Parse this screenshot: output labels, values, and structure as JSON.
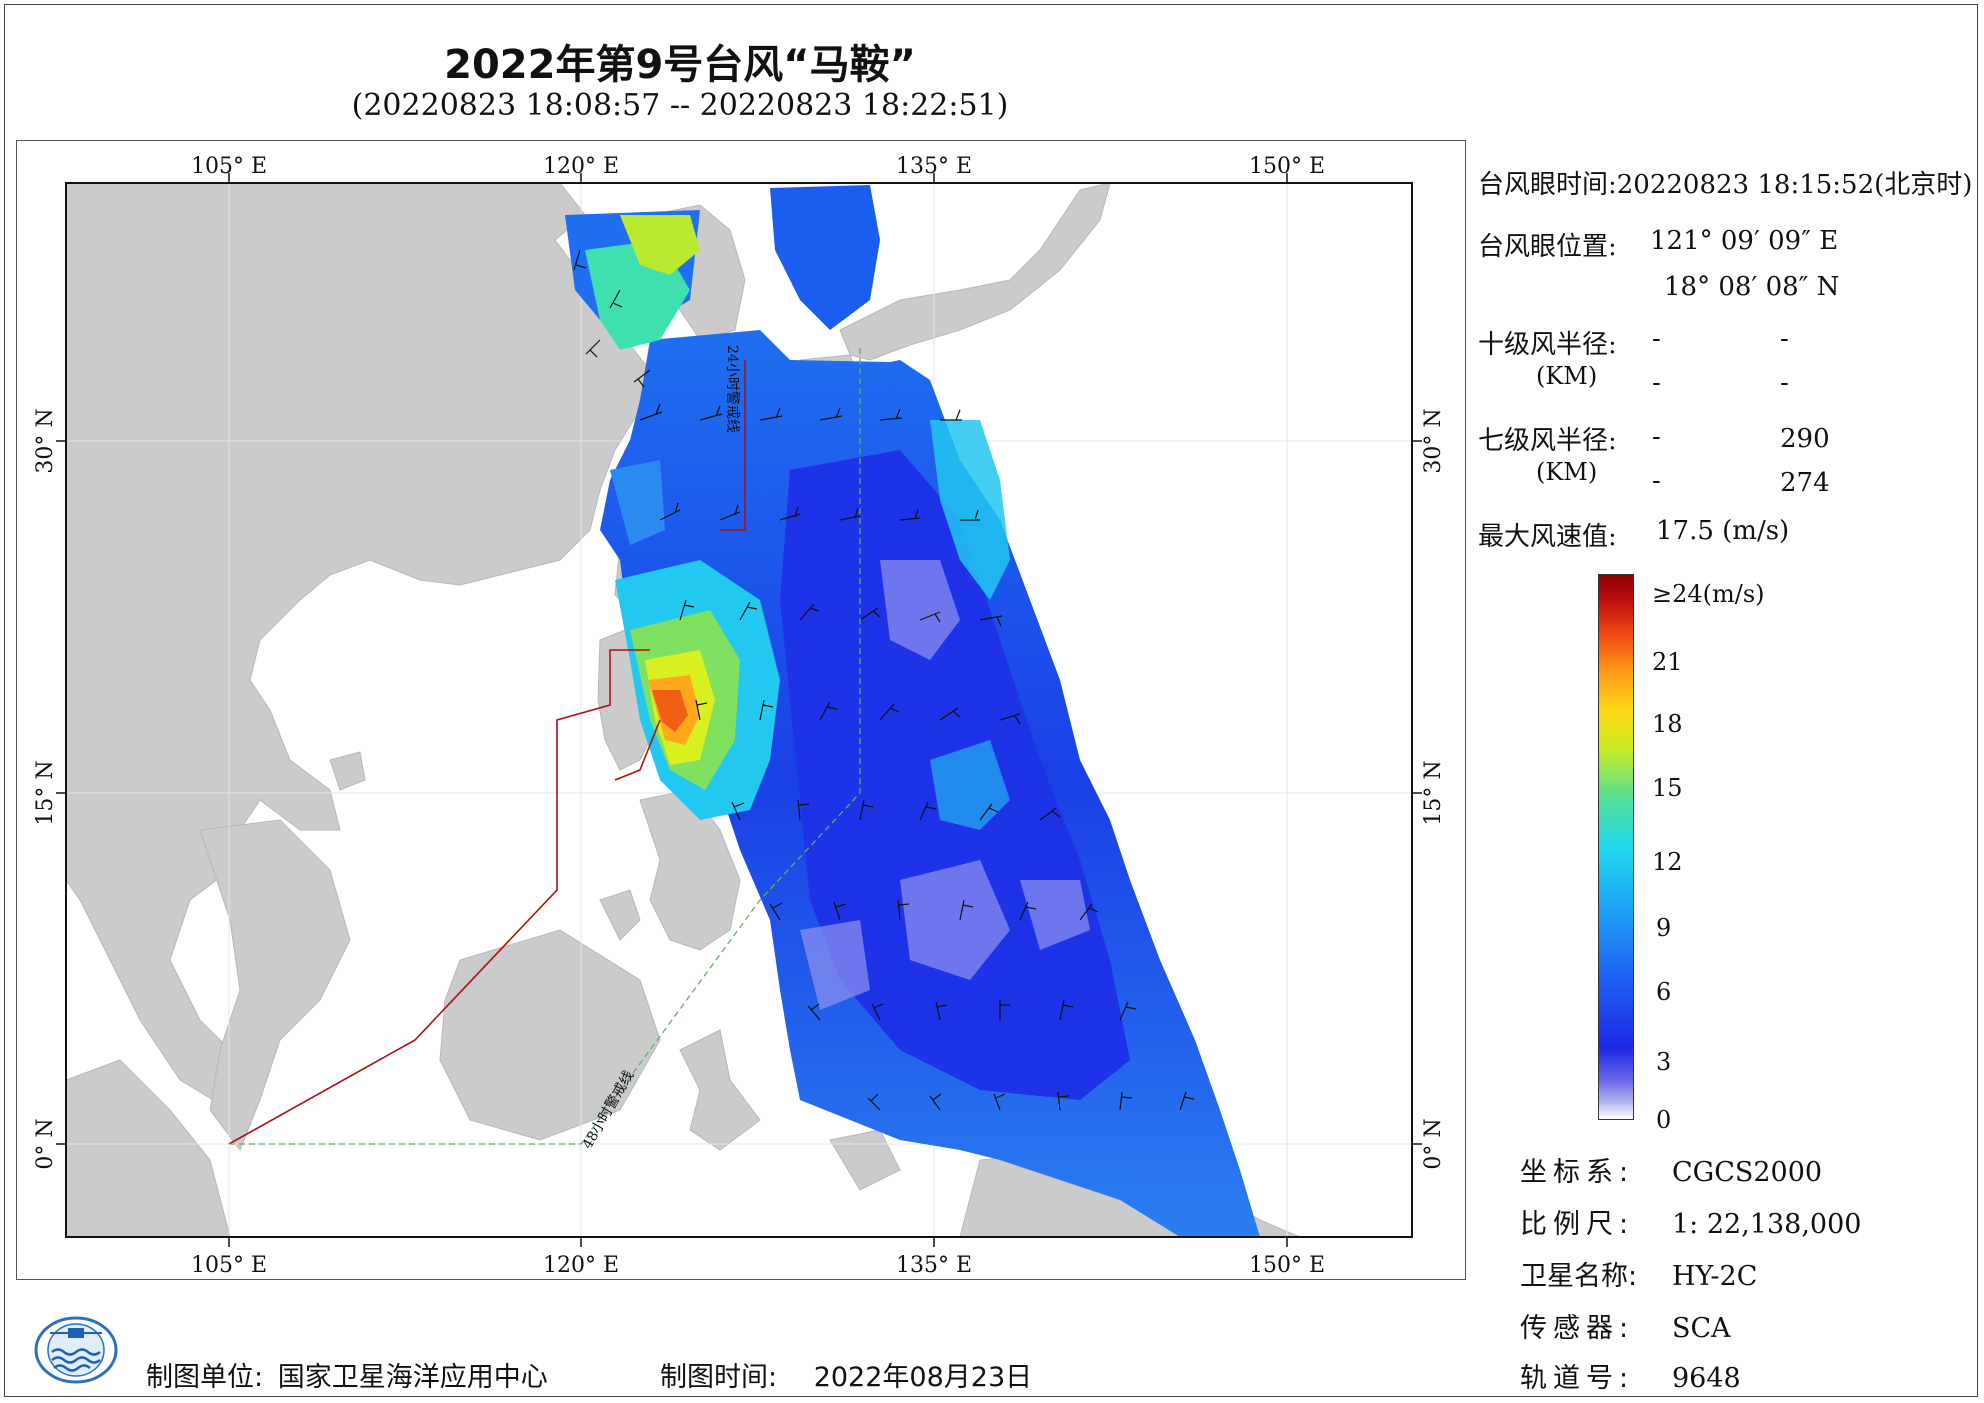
{
  "header": {
    "title": "2022年第9号台风“马鞍”",
    "subtitle": "(20220823 18:08:57 -- 20220823 18:22:51)"
  },
  "map": {
    "lon_ticks_top": [
      "105° E",
      "120° E",
      "135° E",
      "150° E"
    ],
    "lon_ticks_bottom": [
      "105° E",
      "120° E",
      "135° E",
      "150° E"
    ],
    "lat_ticks_left": [
      "30° N",
      "15° N",
      "0° N"
    ],
    "lat_ticks_right": [
      "30° N",
      "15° N",
      "0° N"
    ],
    "line_24h_label": "24小时警戒线",
    "line_48h_label": "48小时警戒线",
    "colors": {
      "land": "#cbcbcb",
      "sea": "#ffffff",
      "line_24h": "#b01010",
      "line_48h": "#5fb05f"
    }
  },
  "info": {
    "eye_time_label": "台风眼时间:",
    "eye_time_value": "20220823 18:15:52(北京时)",
    "eye_pos_label": "台风眼位置:",
    "eye_lon": "121° 09′ 09″ E",
    "eye_lat": "18° 08′ 08″ N",
    "r10_label": "十级风半径:",
    "r10_unit": "(KM)",
    "r10_values": [
      "-",
      "-",
      "-",
      "-"
    ],
    "r7_label": "七级风半径:",
    "r7_unit": "(KM)",
    "r7_values": [
      "-",
      "290",
      "-",
      "274"
    ],
    "max_wind_label": "最大风速值:",
    "max_wind_value": "17.5 (m/s)"
  },
  "legend": {
    "ticks": [
      "≥24(m/s)",
      "21",
      "18",
      "15",
      "12",
      "9",
      "6",
      "3",
      "0"
    ],
    "colors": [
      "#eeeefc",
      "#7070e6",
      "#1a2fe8",
      "#1f7ff2",
      "#20d8f0",
      "#5fe08a",
      "#d8f020",
      "#ffae18",
      "#f03010",
      "#8c0000"
    ]
  },
  "meta": [
    {
      "key": "坐标系:",
      "value": "CGCS2000"
    },
    {
      "key": "比例尺:",
      "value": "1: 22,138,000"
    },
    {
      "key": "卫星名称:",
      "value": "HY-2C"
    },
    {
      "key": "传感器:",
      "value": "SCA"
    },
    {
      "key": "轨道号:",
      "value": "9648"
    }
  ],
  "footer": {
    "org_label": "制图单位:",
    "org_value": "国家卫星海洋应用中心",
    "date_label": "制图时间:",
    "date_value": "2022年08月23日"
  }
}
